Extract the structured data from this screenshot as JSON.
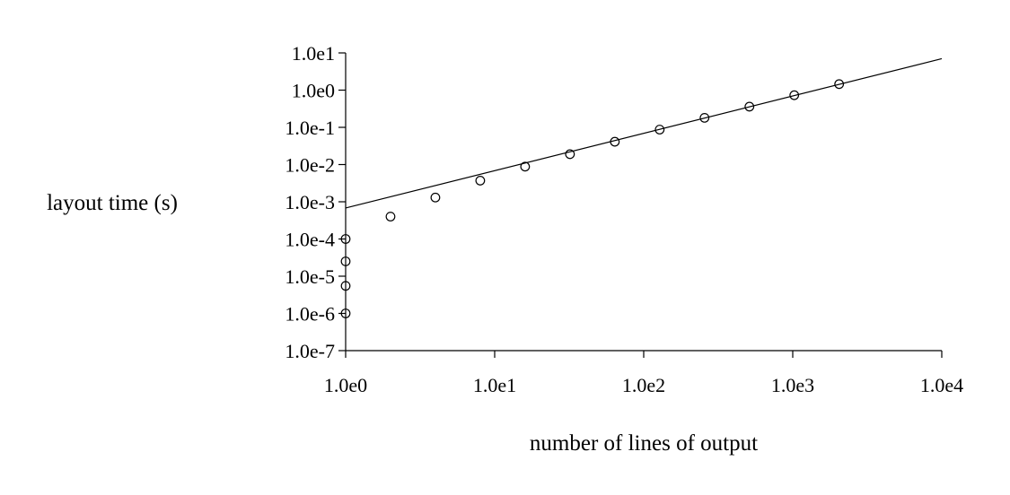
{
  "chart_data": {
    "type": "scatter",
    "title": "",
    "xlabel": "number of lines of output",
    "ylabel": "layout time (s)",
    "x_scale": "log",
    "y_scale": "log",
    "xlim": [
      1,
      10000
    ],
    "ylim": [
      1e-07,
      10
    ],
    "grid": false,
    "legend": "none",
    "x_ticks": [
      {
        "value": 1,
        "label": "1.0e0"
      },
      {
        "value": 10,
        "label": "1.0e1"
      },
      {
        "value": 100,
        "label": "1.0e2"
      },
      {
        "value": 1000,
        "label": "1.0e3"
      },
      {
        "value": 10000,
        "label": "1.0e4"
      }
    ],
    "y_ticks": [
      {
        "value": 10,
        "label": "1.0e1"
      },
      {
        "value": 1,
        "label": "1.0e0"
      },
      {
        "value": 0.1,
        "label": "1.0e-1"
      },
      {
        "value": 0.01,
        "label": "1.0e-2"
      },
      {
        "value": 0.001,
        "label": "1.0e-3"
      },
      {
        "value": 0.0001,
        "label": "1.0e-4"
      },
      {
        "value": 1e-05,
        "label": "1.0e-5"
      },
      {
        "value": 1e-06,
        "label": "1.0e-6"
      },
      {
        "value": 1e-07,
        "label": "1.0e-7"
      }
    ],
    "points": [
      {
        "x": 1,
        "y": 1e-06
      },
      {
        "x": 1,
        "y": 5.5e-06
      },
      {
        "x": 1,
        "y": 2.5e-05
      },
      {
        "x": 1,
        "y": 0.0001
      },
      {
        "x": 2,
        "y": 0.0004
      },
      {
        "x": 4,
        "y": 0.0013
      },
      {
        "x": 8,
        "y": 0.0037
      },
      {
        "x": 16,
        "y": 0.0088
      },
      {
        "x": 32,
        "y": 0.019
      },
      {
        "x": 64,
        "y": 0.041
      },
      {
        "x": 128,
        "y": 0.087
      },
      {
        "x": 256,
        "y": 0.18
      },
      {
        "x": 512,
        "y": 0.36
      },
      {
        "x": 1024,
        "y": 0.73
      },
      {
        "x": 2048,
        "y": 1.45
      }
    ],
    "fit_line": {
      "x": [
        1,
        10000
      ],
      "y": [
        0.00068,
        7.0
      ]
    },
    "colors": {
      "ink": "#000000",
      "background": "#ffffff"
    }
  }
}
